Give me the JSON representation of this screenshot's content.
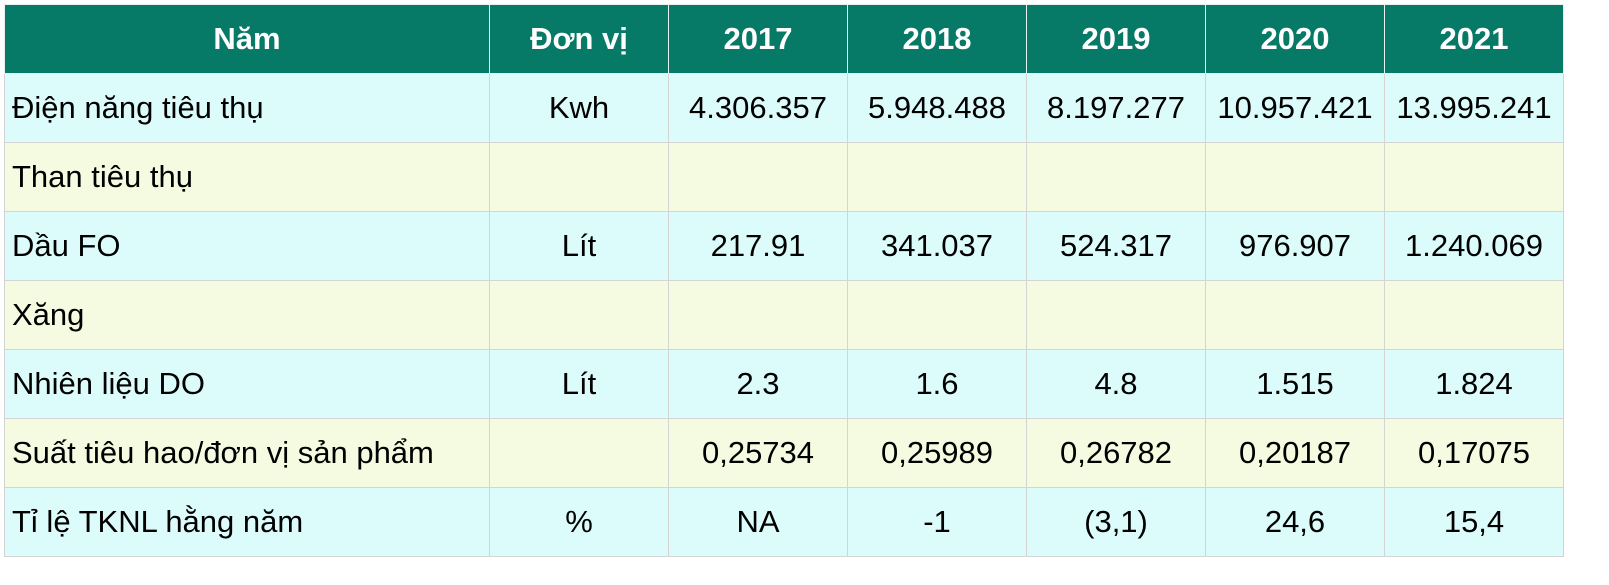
{
  "header": {
    "year_label": "Năm",
    "unit_label": "Đơn vị",
    "years": [
      "2017",
      "2018",
      "2019",
      "2020",
      "2021"
    ]
  },
  "rows": [
    {
      "label": "Điện năng tiêu thụ",
      "unit": "Kwh",
      "values": [
        "4.306.357",
        "5.948.488",
        "8.197.277",
        "10.957.421",
        "13.995.241"
      ]
    },
    {
      "label": "Than tiêu thụ",
      "unit": "",
      "values": [
        "",
        "",
        "",
        "",
        ""
      ]
    },
    {
      "label": "Dầu FO",
      "unit": "Lít",
      "values": [
        "217.91",
        "341.037",
        "524.317",
        "976.907",
        "1.240.069"
      ]
    },
    {
      "label": "Xăng",
      "unit": "",
      "values": [
        "",
        "",
        "",
        "",
        ""
      ]
    },
    {
      "label": "Nhiên liệu DO",
      "unit": "Lít",
      "values": [
        "2.3",
        "1.6",
        "4.8",
        "1.515",
        "1.824"
      ]
    },
    {
      "label": "Suất tiêu hao/đơn vị sản phẩm",
      "unit": "",
      "values": [
        "0,25734",
        "0,25989",
        "0,26782",
        "0,20187",
        "0,17075"
      ]
    },
    {
      "label": "Tỉ lệ TKNL hằng năm",
      "unit": "%",
      "values": [
        "NA",
        "-1",
        "(3,1)",
        "24,6",
        "15,4"
      ]
    }
  ],
  "colors": {
    "header_bg": "#067a66",
    "row_cyan": "#dcfcfb",
    "row_yellow": "#f4fbe0"
  }
}
